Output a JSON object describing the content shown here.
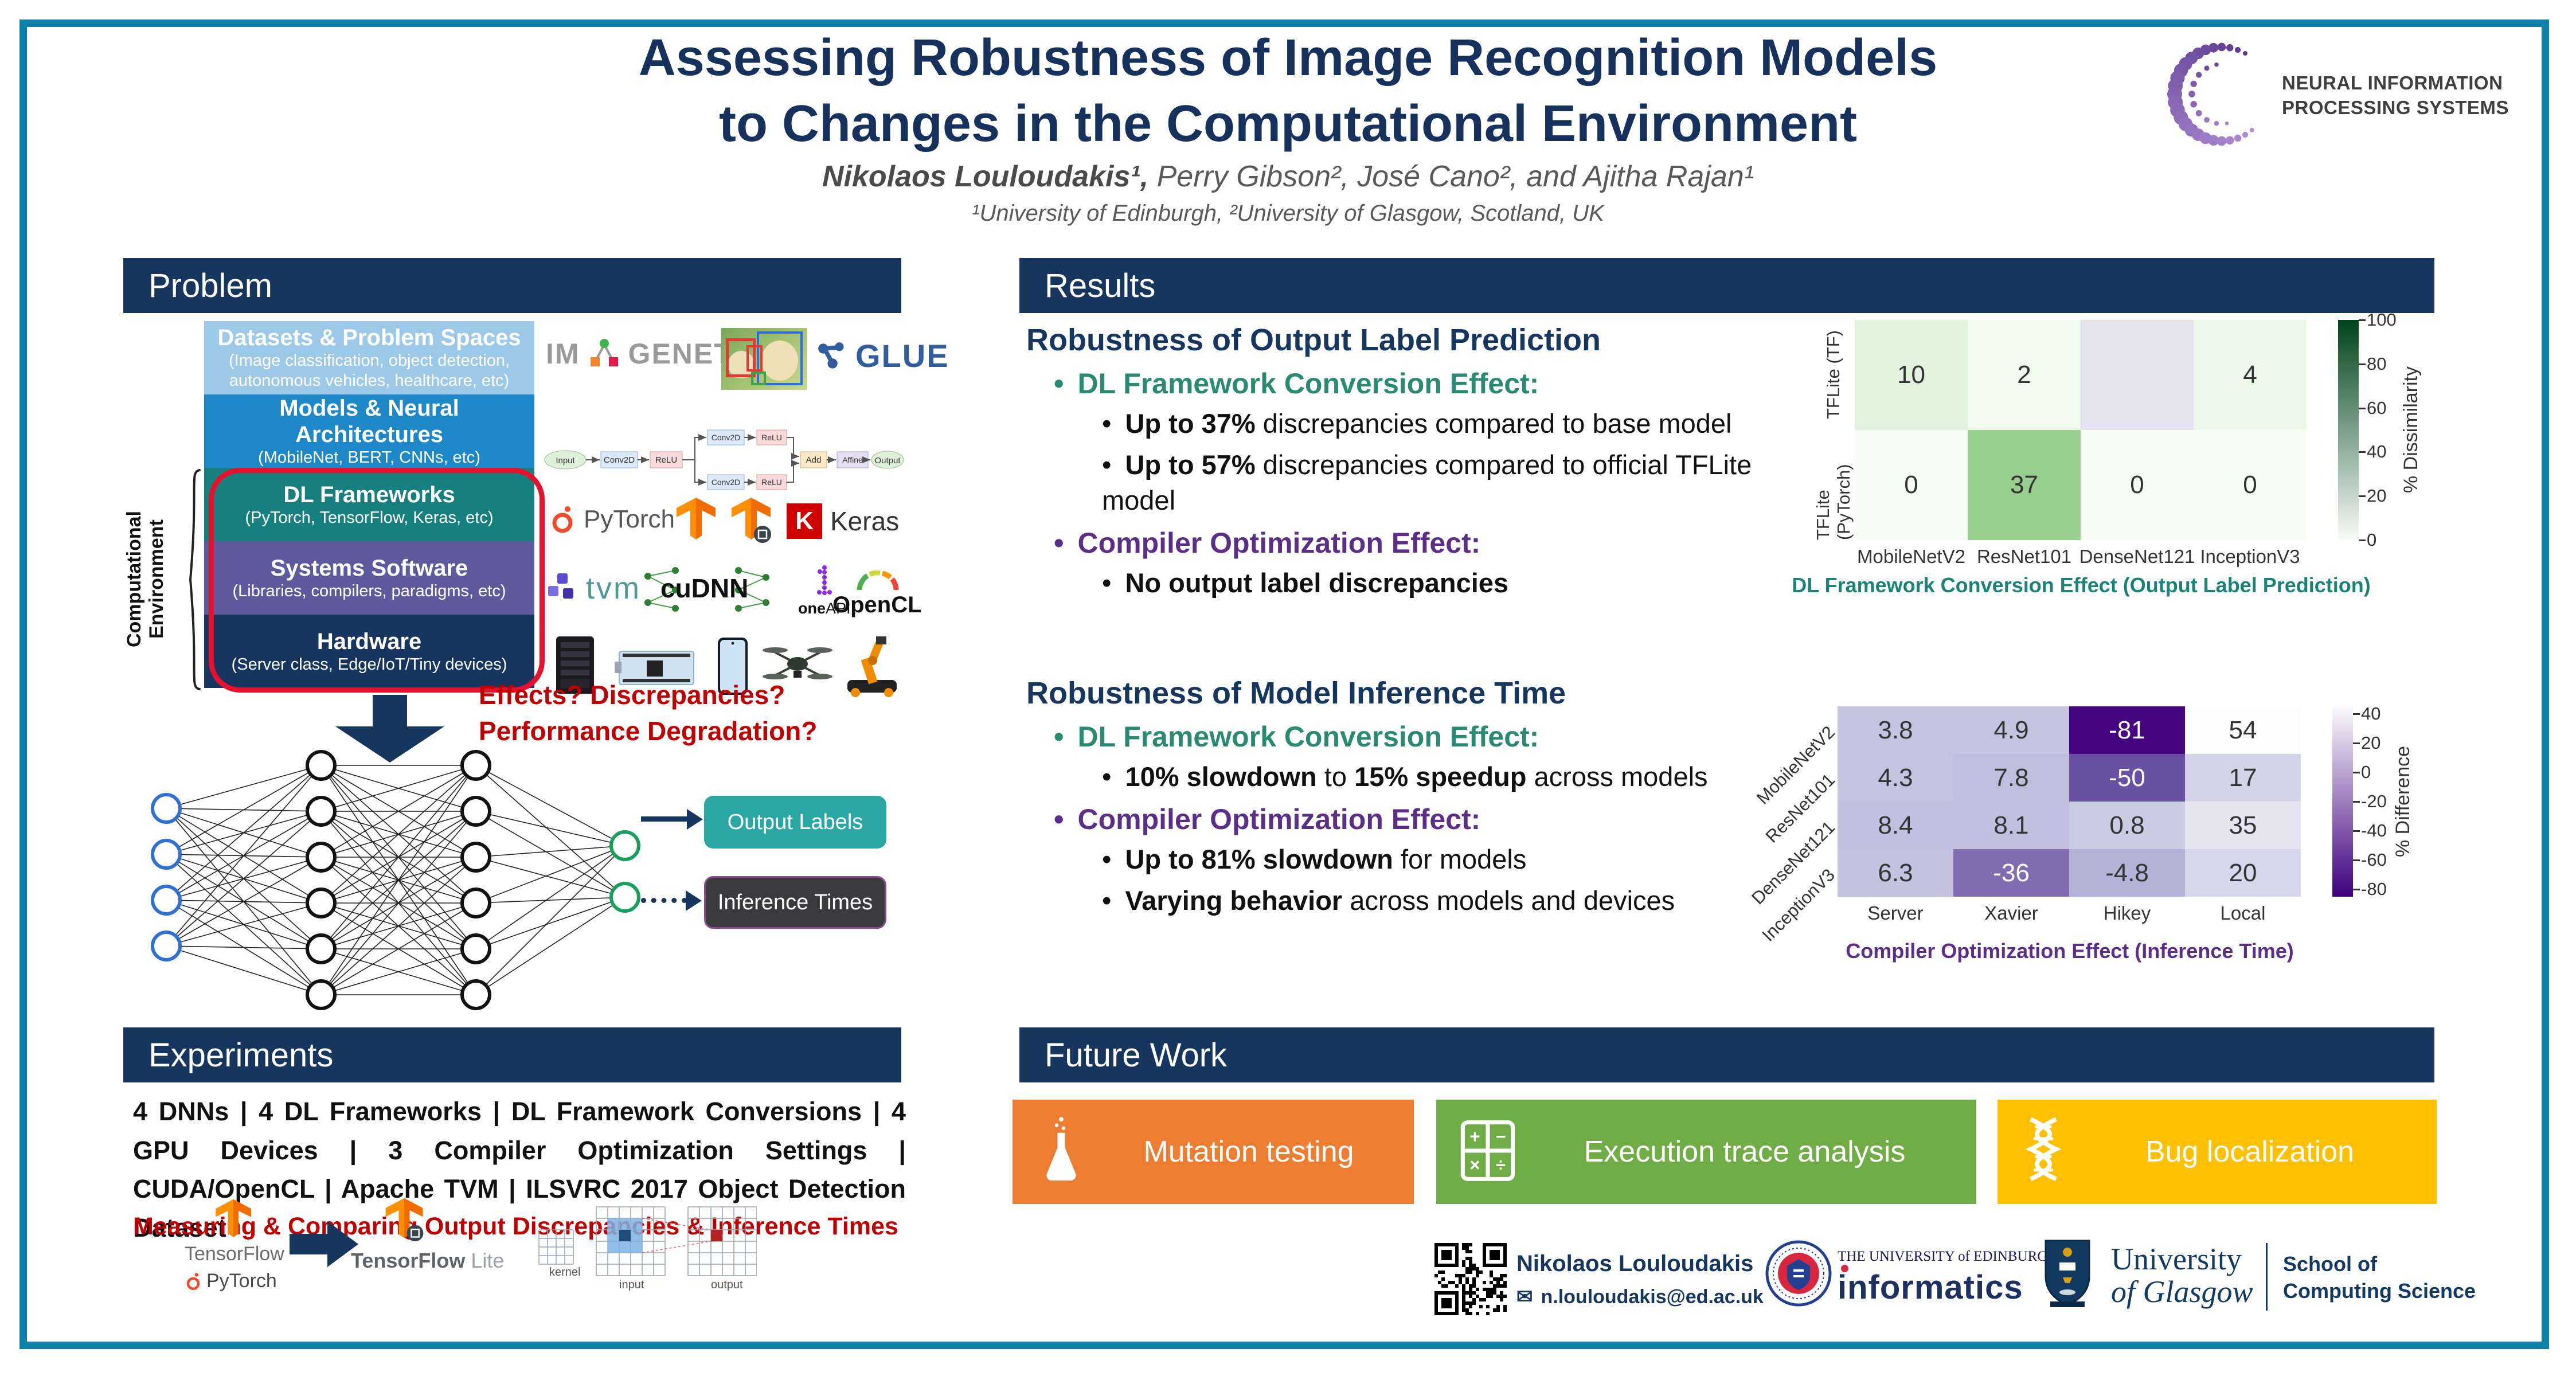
{
  "poster": {
    "title_line1": "Assessing Robustness of Image Recognition Models",
    "title_line2": "to Changes in the Computational Environment",
    "authors_bold": "Nikolaos Louloudakis¹,",
    "authors_rest": " Perry Gibson², José Cano², and Ajitha Rajan¹",
    "affiliation": "¹University of Edinburgh, ²University of Glasgow, Scotland, UK"
  },
  "neurips": {
    "line1": "NEURAL INFORMATION",
    "line2": "PROCESSING SYSTEMS"
  },
  "sections": {
    "problem": "Problem",
    "results": "Results",
    "experiments": "Experiments",
    "future": "Future Work"
  },
  "palette": {
    "navy": "#17365D",
    "teal": "#2A8A72",
    "purple": "#5B2F87",
    "red": "#C00000",
    "frame": "#0E81A9"
  },
  "problem": {
    "env_label": "Computational Environment",
    "stack": [
      {
        "title": "Datasets & Problem Spaces",
        "subtitle": "(Image classification, object detection, autonomous vehicles, healthcare, etc)",
        "color": "#9DC9E8"
      },
      {
        "title": "Models & Neural Architectures",
        "subtitle": "(MobileNet, BERT, CNNs, etc)",
        "color": "#1E87C8"
      },
      {
        "title": "DL Frameworks",
        "subtitle": "(PyTorch, TensorFlow, Keras, etc)",
        "color": "#17807E"
      },
      {
        "title": "Systems Software",
        "subtitle": "(Libraries, compilers, paradigms, etc)",
        "color": "#5F5A9E"
      },
      {
        "title": "Hardware",
        "subtitle": "(Server class, Edge/IoT/Tiny devices)",
        "color": "#16365F"
      }
    ],
    "logos": {
      "imagenet_left": "IM",
      "imagenet_right": "GENET",
      "glue": "GLUE",
      "pytorch": "PyTorch",
      "keras_k": "K",
      "keras": "Keras",
      "tvm": "tvm",
      "cudnn": "cuDNN",
      "oneapi_one": "one",
      "oneapi_api": "API",
      "opencl": "OpenCL"
    },
    "model_graph_labels": [
      "Input",
      "Conv2D",
      "ReLU",
      "Conv2D",
      "ReLU",
      "Conv2D",
      "ReLU",
      "Add",
      "Affine",
      "Output"
    ],
    "questions": [
      "Effects? Discrepancies?",
      "Performance Degradation?"
    ],
    "output_labels": "Output Labels",
    "inference_times": "Inference Times"
  },
  "results": {
    "block1": {
      "heading": "Robustness of Output Label Prediction",
      "items": [
        {
          "level": 1,
          "color": "#2A8A72",
          "segments": [
            {
              "t": "DL Framework Conversion Effect:",
              "b": true
            }
          ]
        },
        {
          "level": 2,
          "segments": [
            {
              "t": "Up to 37%",
              "b": true
            },
            {
              "t": " discrepancies compared to base model",
              "b": false
            }
          ]
        },
        {
          "level": 2,
          "segments": [
            {
              "t": "Up to 57%",
              "b": true
            },
            {
              "t": " discrepancies compared to official TFLite model",
              "b": false
            }
          ]
        },
        {
          "level": 1,
          "color": "#5B2F87",
          "segments": [
            {
              "t": "Compiler Optimization Effect:",
              "b": true
            }
          ]
        },
        {
          "level": 2,
          "segments": [
            {
              "t": "No output label discrepancies",
              "b": true
            }
          ]
        }
      ]
    },
    "block2": {
      "heading": "Robustness of Model Inference Time",
      "items": [
        {
          "level": 1,
          "color": "#2A8A72",
          "segments": [
            {
              "t": "DL Framework Conversion Effect:",
              "b": true
            }
          ]
        },
        {
          "level": 2,
          "segments": [
            {
              "t": "10% slowdown",
              "b": true
            },
            {
              "t": " to ",
              "b": false
            },
            {
              "t": "15% speedup",
              "b": true
            },
            {
              "t": " across models",
              "b": false
            }
          ]
        },
        {
          "level": 1,
          "color": "#5B2F87",
          "segments": [
            {
              "t": "Compiler Optimization Effect:",
              "b": true
            }
          ]
        },
        {
          "level": 2,
          "segments": [
            {
              "t": "Up to 81% slowdown",
              "b": true
            },
            {
              "t": " for models",
              "b": false
            }
          ]
        },
        {
          "level": 2,
          "segments": [
            {
              "t": "Varying behavior",
              "b": true
            },
            {
              "t": " across models and devices",
              "b": false
            }
          ]
        }
      ]
    }
  },
  "chart_data": [
    {
      "type": "heatmap",
      "title": "DL Framework Conversion Effect (Output Label Prediction)",
      "title_color": "#1B8374",
      "x_categories": [
        "MobileNetV2",
        "ResNet101",
        "DenseNet121",
        "InceptionV3"
      ],
      "y_categories": [
        "TFLite (TF)",
        "TFLite (PyTorch)"
      ],
      "values": [
        [
          10,
          2,
          null,
          4
        ],
        [
          0,
          37,
          0,
          0
        ]
      ],
      "cell_colors": [
        [
          "#e1f3dc",
          "#f0faed",
          "#e3e2ee",
          "#ecf8e8"
        ],
        [
          "#f7fcf5",
          "#98cf8e",
          "#f7fcf5",
          "#f7fcf5"
        ]
      ],
      "cell_text_colors": [
        [
          "#333333",
          "#333333",
          "#333333",
          "#333333"
        ],
        [
          "#333333",
          "#333333",
          "#333333",
          "#333333"
        ]
      ],
      "colorbar": {
        "label": "% Dissimilarity",
        "ticks": [
          100,
          80,
          60,
          40,
          20,
          0
        ],
        "top_color": "#00441b",
        "bottom_color": "#f7fcf5"
      }
    },
    {
      "type": "heatmap",
      "title": "Compiler Optimization Effect (Inference Time)",
      "title_color": "#5B2F87",
      "x_categories": [
        "Server",
        "Xavier",
        "Hikey",
        "Local"
      ],
      "y_categories": [
        "MobileNetV2",
        "ResNet101",
        "DenseNet121",
        "InceptionV3"
      ],
      "values": [
        [
          3.8,
          4.9,
          -81,
          54
        ],
        [
          4.3,
          7.8,
          -50,
          17
        ],
        [
          8.4,
          8.1,
          0.8,
          35
        ],
        [
          6.3,
          -36,
          -4.8,
          20
        ]
      ],
      "cell_colors": [
        [
          "#c5c3e0",
          "#c5c3e0",
          "#45057f",
          "#fdfdfe"
        ],
        [
          "#c5c3e0",
          "#c0bedd",
          "#6950a3",
          "#d4d3e8"
        ],
        [
          "#c2c0de",
          "#c2c0de",
          "#cccbe4",
          "#e6e5f1"
        ],
        [
          "#c4c2df",
          "#7f6db0",
          "#b4b2d6",
          "#d7d6ea"
        ]
      ],
      "cell_text_colors": [
        [
          "#333333",
          "#333333",
          "#ffffff",
          "#333333"
        ],
        [
          "#333333",
          "#333333",
          "#ffffff",
          "#333333"
        ],
        [
          "#333333",
          "#333333",
          "#333333",
          "#333333"
        ],
        [
          "#333333",
          "#ffffff",
          "#333333",
          "#333333"
        ]
      ],
      "colorbar": {
        "label": "% Difference",
        "ticks": [
          40,
          20,
          0,
          -20,
          -40,
          -60,
          -80
        ],
        "top_color": "#fcfbfd",
        "bottom_color": "#3f007d"
      }
    }
  ],
  "experiments": {
    "line": "4 DNNs | 4 DL Frameworks | DL Framework Conversions | 4 GPU Devices | 3 Compiler Optimization Settings | CUDA/OpenCL | Apache TVM | ILSVRC 2017 Object Detection Dataset",
    "highlight": "Measuring & Comparing Output Discrepancies & Inference Times",
    "logos": {
      "tensorflow": "TensorFlow",
      "pytorch": "PyTorch",
      "tflite_main": "TensorFlow",
      "tflite_lite": " Lite",
      "kernel": "kernel",
      "input": "input",
      "output": "output"
    }
  },
  "future": {
    "cards": [
      {
        "label": "Mutation testing",
        "color": "#ED7D31",
        "icon": "flask-icon"
      },
      {
        "label": "Execution trace analysis",
        "color": "#70AD47",
        "icon": "calculator-icon"
      },
      {
        "label": "Bug localization",
        "color": "#FFC000",
        "icon": "dna-icon"
      }
    ]
  },
  "footer": {
    "name": "Nikolaos Louloudakis",
    "email": "n.louloudakis@ed.ac.uk",
    "edinburgh_small": "THE UNIVERSITY of EDINBURGH",
    "edinburgh_big": "informatics",
    "glasgow_line1": "University",
    "glasgow_line2": "of Glasgow",
    "school_line1": "School of",
    "school_line2": "Computing Science"
  }
}
